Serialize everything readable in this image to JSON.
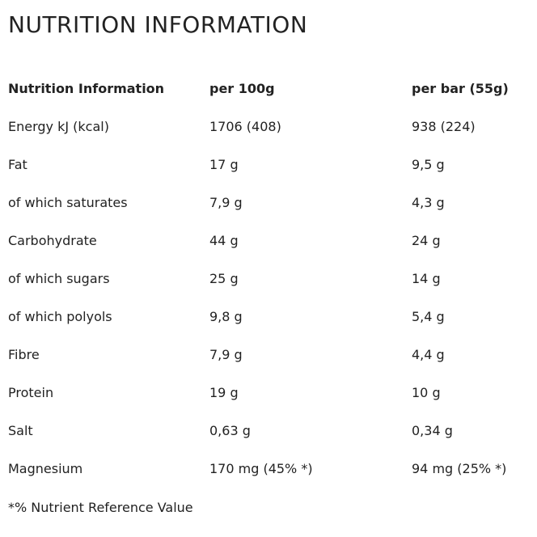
{
  "title": "NUTRITION INFORMATION",
  "table": {
    "headers": [
      "Nutrition Information",
      "per 100g",
      "per bar (55g)"
    ],
    "rows": [
      [
        "Energy kJ (kcal)",
        "1706 (408)",
        "938 (224)"
      ],
      [
        "Fat",
        "17 g",
        "9,5 g"
      ],
      [
        "of which saturates",
        "7,9 g",
        "4,3 g"
      ],
      [
        "Carbohydrate",
        "44 g",
        "24 g"
      ],
      [
        "of which sugars",
        "25 g",
        "14 g"
      ],
      [
        "of which polyols",
        "9,8 g",
        "5,4 g"
      ],
      [
        "Fibre",
        "7,9 g",
        "4,4 g"
      ],
      [
        "Protein",
        "19 g",
        "10 g"
      ],
      [
        "Salt",
        "0,63 g",
        "0,34 g"
      ],
      [
        "Magnesium",
        "170 mg (45% *)",
        "94 mg (25% *)"
      ]
    ]
  },
  "footnote": "*% Nutrient Reference Value"
}
